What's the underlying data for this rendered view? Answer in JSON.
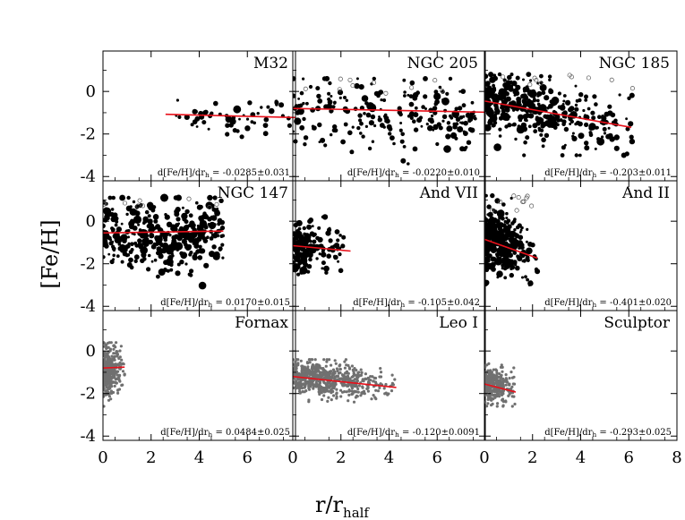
{
  "chart_data": {
    "type": "scatter",
    "layout": "3x3 small multiples",
    "ylabel": "[Fe/H]",
    "xlabel_main": "r/r",
    "xlabel_sub": "half",
    "xlim": [
      0,
      8
    ],
    "ylim": [
      -4.2,
      1.9
    ],
    "x_ticks": [
      "0",
      "2",
      "4",
      "6",
      "8"
    ],
    "y_ticks": [
      "0",
      "-2",
      "-4"
    ],
    "annotation_prefix": "d[Fe/H]/dr",
    "annotation_sub": "h",
    "colors": {
      "line": "#e8101a",
      "black_points": "#000000",
      "gray_points": "#707070"
    },
    "panels": [
      {
        "name": "M32",
        "gradient": "-0.0285±0.031",
        "slope": -0.0285,
        "intercept": -1.0,
        "fit_xrange": [
          2.6,
          8.0
        ],
        "point_color": "black",
        "xrange": [
          2.6,
          7.8
        ],
        "yrange": [
          -2.6,
          0.0
        ],
        "n_points": 55,
        "open_circles": false
      },
      {
        "name": "NGC 205",
        "gradient": "-0.0220±0.010",
        "slope": -0.022,
        "intercept": -0.8,
        "fit_xrange": [
          0.0,
          8.0
        ],
        "point_color": "black",
        "xrange": [
          0.0,
          7.6
        ],
        "yrange": [
          -3.4,
          0.6
        ],
        "n_points": 230,
        "open_circles": true
      },
      {
        "name": "NGC 185",
        "gradient": "-0.203±0.011",
        "slope": -0.203,
        "intercept": -0.45,
        "fit_xrange": [
          0.0,
          6.1
        ],
        "point_color": "black",
        "xrange": [
          0.0,
          6.3
        ],
        "yrange": [
          -3.0,
          0.8
        ],
        "n_points": 380,
        "open_circles": true
      },
      {
        "name": "NGC 147",
        "gradient": "0.0170±0.015",
        "slope": 0.017,
        "intercept": -0.55,
        "fit_xrange": [
          0.0,
          5.0
        ],
        "point_color": "black",
        "xrange": [
          0.0,
          5.0
        ],
        "yrange": [
          -3.1,
          1.1
        ],
        "n_points": 380,
        "open_circles": true
      },
      {
        "name": "And VII",
        "gradient": "-0.105±0.042",
        "slope": -0.105,
        "intercept": -1.15,
        "fit_xrange": [
          0.0,
          2.4
        ],
        "point_color": "black",
        "xrange": [
          0.0,
          2.2
        ],
        "yrange": [
          -3.0,
          0.2
        ],
        "n_points": 150,
        "open_circles": false
      },
      {
        "name": "And II",
        "gradient": "-0.401±0.020",
        "slope": -0.401,
        "intercept": -0.85,
        "fit_xrange": [
          0.0,
          2.2
        ],
        "point_color": "black",
        "xrange": [
          0.0,
          2.2
        ],
        "yrange": [
          -3.0,
          1.2
        ],
        "n_points": 320,
        "open_circles": true
      },
      {
        "name": "Fornax",
        "gradient": "0.0484±0.025",
        "slope": 0.0484,
        "intercept": -0.8,
        "fit_xrange": [
          0.0,
          0.9
        ],
        "point_color": "gray",
        "xrange": [
          0.0,
          0.9
        ],
        "yrange": [
          -2.6,
          0.4
        ],
        "n_points": 330,
        "open_circles": false
      },
      {
        "name": "Leo I",
        "gradient": "-0.120±0.0091",
        "slope": -0.12,
        "intercept": -1.2,
        "fit_xrange": [
          0.0,
          4.3
        ],
        "point_color": "gray",
        "xrange": [
          0.0,
          4.3
        ],
        "yrange": [
          -2.4,
          -0.4
        ],
        "n_points": 650,
        "open_circles": false
      },
      {
        "name": "Sculptor",
        "gradient": "-0.293±0.025",
        "slope": -0.293,
        "intercept": -1.55,
        "fit_xrange": [
          0.0,
          1.3
        ],
        "point_color": "gray",
        "xrange": [
          0.0,
          1.3
        ],
        "yrange": [
          -2.6,
          -0.6
        ],
        "n_points": 330,
        "open_circles": false
      }
    ]
  }
}
